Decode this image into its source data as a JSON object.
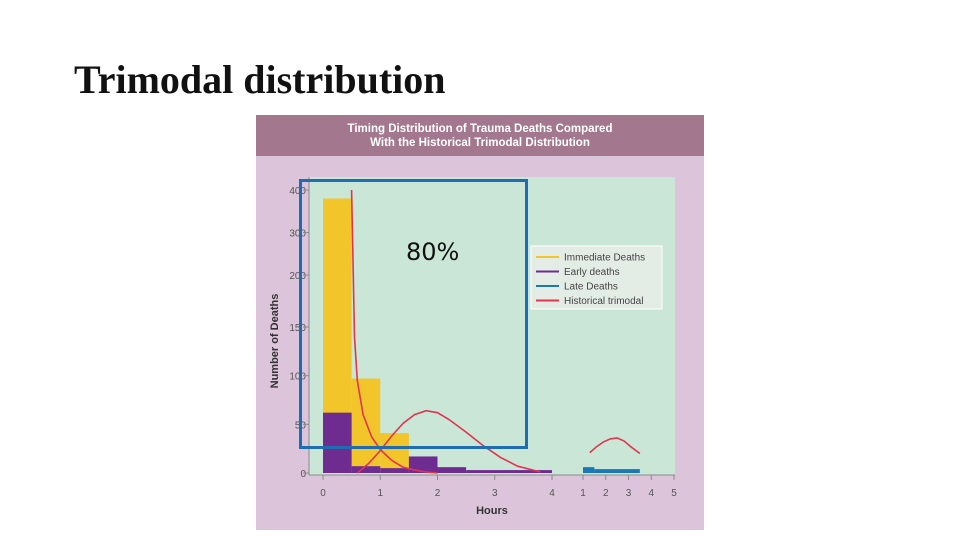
{
  "slide": {
    "title": "Trimodal distribution",
    "overlay_label": "80%"
  },
  "colors": {
    "figure_background": "#dcc5db",
    "header_background": "#a3788f",
    "plot_background": "#c9e6d6",
    "immediate": "#f2c62a",
    "early": "#6e2c91",
    "late": "#1a78b8",
    "historical": "#e03550",
    "highlight_box": "#1f6cb0"
  },
  "chart_data": {
    "type": "bar",
    "title_lines": [
      "Timing Distribution of Trauma Deaths Compared",
      "With the Historical Trimodal Distribution"
    ],
    "xlabel": "Hours",
    "ylabel": "Number of Deaths",
    "x_ticks": [
      "0",
      "1",
      "2",
      "3",
      "4",
      "1",
      "2",
      "3",
      "4",
      "5"
    ],
    "y_ticks": [
      "0",
      "50",
      "100",
      "150",
      "200",
      "300",
      "400"
    ],
    "y_axis_note": "broken axis: 0–150 linear, compressed above 150",
    "ylim": [
      0,
      400
    ],
    "legend_position": "right",
    "series": [
      {
        "name": "Immediate Deaths",
        "kind": "bar",
        "bars": [
          {
            "x0": 0,
            "x1": 0.5,
            "value": 380
          },
          {
            "x0": 0.5,
            "x1": 1,
            "value": 97
          },
          {
            "x0": 1,
            "x1": 1.5,
            "value": 41
          }
        ]
      },
      {
        "name": "Early deaths",
        "kind": "bar",
        "bars": [
          {
            "x0": 0,
            "x1": 0.5,
            "value": 62
          },
          {
            "x0": 0.5,
            "x1": 1,
            "value": 7
          },
          {
            "x0": 1,
            "x1": 1.5,
            "value": 5
          },
          {
            "x0": 1.5,
            "x1": 2,
            "value": 17
          },
          {
            "x0": 2,
            "x1": 2.5,
            "value": 6
          },
          {
            "x0": 2.5,
            "x1": 4,
            "value": 3
          }
        ]
      },
      {
        "name": "Late Deaths",
        "kind": "bar",
        "bars": [
          {
            "x0": 5,
            "x1": 5.5,
            "value": 6
          },
          {
            "x0": 5.5,
            "x1": 7.5,
            "value": 4
          }
        ]
      },
      {
        "name": "Historical trimodal",
        "kind": "line",
        "points": [
          [
            0.5,
            400
          ],
          [
            0.55,
            140
          ],
          [
            0.6,
            95
          ],
          [
            0.7,
            60
          ],
          [
            0.85,
            37
          ],
          [
            1,
            24
          ],
          [
            1.2,
            13
          ],
          [
            1.4,
            6
          ],
          [
            1.6,
            3
          ],
          [
            1.8,
            1
          ],
          [
            2,
            0
          ],
          [
            0.6,
            0
          ],
          [
            0.8,
            10
          ],
          [
            1.0,
            23
          ],
          [
            1.2,
            38
          ],
          [
            1.4,
            51
          ],
          [
            1.6,
            60
          ],
          [
            1.8,
            64
          ],
          [
            2.0,
            62
          ],
          [
            2.2,
            55
          ],
          [
            2.5,
            42
          ],
          [
            2.8,
            28
          ],
          [
            3.1,
            16
          ],
          [
            3.4,
            7
          ],
          [
            3.8,
            1
          ],
          [
            5.3,
            21
          ],
          [
            5.6,
            27
          ],
          [
            5.9,
            32
          ],
          [
            6.2,
            35
          ],
          [
            6.5,
            36
          ],
          [
            6.8,
            33
          ],
          [
            7.1,
            27
          ],
          [
            7.5,
            20
          ]
        ]
      }
    ]
  }
}
